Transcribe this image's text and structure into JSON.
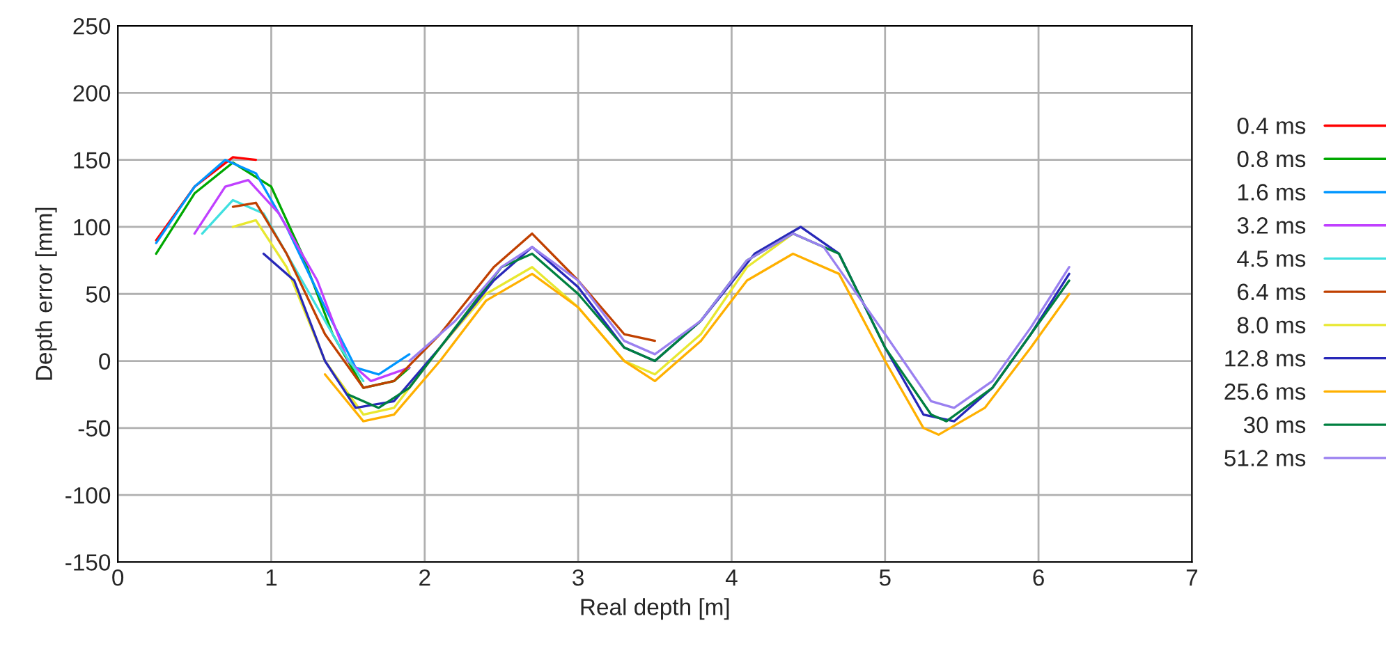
{
  "chart_data": {
    "type": "line",
    "xlabel": "Real depth [m]",
    "ylabel": "Depth error [mm]",
    "xlim": [
      0,
      7
    ],
    "xticks": [
      0,
      1,
      2,
      3,
      4,
      5,
      6,
      7
    ],
    "ylim": [
      -150,
      250
    ],
    "yticks": [
      -150,
      -100,
      -50,
      0,
      50,
      100,
      150,
      200,
      250
    ],
    "grid": true,
    "legend": "right",
    "line_style": "solid",
    "marker": "none",
    "series": [
      {
        "name": "0.4 ms",
        "color": "#ff0000",
        "x": [
          0.25,
          0.5,
          0.75,
          0.9
        ],
        "values": [
          90,
          130,
          152,
          150
        ]
      },
      {
        "name": "0.8 ms",
        "color": "#00a800",
        "x": [
          0.25,
          0.5,
          0.75,
          1.0,
          1.2,
          1.4,
          1.6,
          1.8,
          1.9
        ],
        "values": [
          80,
          125,
          148,
          130,
          80,
          20,
          -20,
          -15,
          -5
        ]
      },
      {
        "name": "1.6 ms",
        "color": "#0096ff",
        "x": [
          0.25,
          0.5,
          0.7,
          0.9,
          1.1,
          1.35,
          1.55,
          1.7,
          1.9
        ],
        "values": [
          88,
          130,
          150,
          140,
          100,
          40,
          -5,
          -10,
          5
        ]
      },
      {
        "name": "3.2 ms",
        "color": "#c040ff",
        "x": [
          0.5,
          0.7,
          0.85,
          1.05,
          1.3,
          1.5,
          1.65,
          1.9
        ],
        "values": [
          95,
          130,
          135,
          110,
          60,
          0,
          -15,
          -5
        ]
      },
      {
        "name": "4.5 ms",
        "color": "#40e0e0",
        "x": [
          0.55,
          0.75,
          0.95,
          1.2,
          1.45,
          1.6
        ],
        "values": [
          95,
          120,
          110,
          60,
          10,
          -15
        ]
      },
      {
        "name": "6.4 ms",
        "color": "#c04000",
        "x": [
          0.75,
          0.9,
          1.1,
          1.35,
          1.6,
          1.8,
          2.1,
          2.45,
          2.7,
          3.0,
          3.3,
          3.5
        ],
        "values": [
          115,
          118,
          80,
          20,
          -20,
          -15,
          20,
          70,
          95,
          60,
          20,
          15
        ]
      },
      {
        "name": "8.0 ms",
        "color": "#e8e830",
        "x": [
          0.75,
          0.9,
          1.1,
          1.35,
          1.6,
          1.8,
          2.1,
          2.4,
          2.7,
          3.0,
          3.3,
          3.5,
          3.8,
          4.1,
          4.4
        ],
        "values": [
          100,
          105,
          70,
          0,
          -40,
          -35,
          10,
          50,
          70,
          40,
          0,
          -10,
          20,
          70,
          95
        ]
      },
      {
        "name": "12.8 ms",
        "color": "#2828b8",
        "x": [
          0.95,
          1.15,
          1.35,
          1.55,
          1.8,
          2.1,
          2.45,
          2.7,
          3.0,
          3.3,
          3.5,
          3.8,
          4.15,
          4.45,
          4.7,
          5.0,
          5.25,
          5.45,
          5.7,
          5.95,
          6.2
        ],
        "values": [
          80,
          60,
          0,
          -35,
          -30,
          10,
          60,
          85,
          55,
          10,
          0,
          30,
          80,
          100,
          80,
          10,
          -40,
          -45,
          -20,
          20,
          65
        ]
      },
      {
        "name": "25.6 ms",
        "color": "#ffb000",
        "x": [
          1.35,
          1.6,
          1.8,
          2.1,
          2.4,
          2.7,
          3.0,
          3.3,
          3.5,
          3.8,
          4.1,
          4.4,
          4.7,
          5.0,
          5.25,
          5.35,
          5.65,
          5.95,
          6.2
        ],
        "values": [
          -10,
          -45,
          -40,
          0,
          45,
          65,
          40,
          0,
          -15,
          15,
          60,
          80,
          65,
          0,
          -50,
          -55,
          -35,
          10,
          50
        ]
      },
      {
        "name": "30 ms",
        "color": "#008040",
        "x": [
          1.5,
          1.7,
          1.9,
          2.2,
          2.5,
          2.7,
          3.0,
          3.3,
          3.5,
          3.8,
          4.1,
          4.4,
          4.7,
          5.0,
          5.3,
          5.4,
          5.7,
          5.95,
          6.2
        ],
        "values": [
          -25,
          -35,
          -20,
          25,
          70,
          80,
          50,
          10,
          0,
          30,
          75,
          95,
          80,
          10,
          -40,
          -45,
          -20,
          20,
          60
        ]
      },
      {
        "name": "51.2 ms",
        "color": "#9a80f0",
        "x": [
          1.9,
          2.2,
          2.5,
          2.7,
          3.0,
          3.3,
          3.5,
          3.8,
          4.1,
          4.4,
          4.6,
          5.0,
          5.3,
          5.45,
          5.7,
          5.95,
          6.2
        ],
        "values": [
          0,
          30,
          70,
          85,
          60,
          15,
          5,
          30,
          75,
          95,
          85,
          20,
          -30,
          -35,
          -15,
          25,
          70
        ]
      }
    ]
  }
}
